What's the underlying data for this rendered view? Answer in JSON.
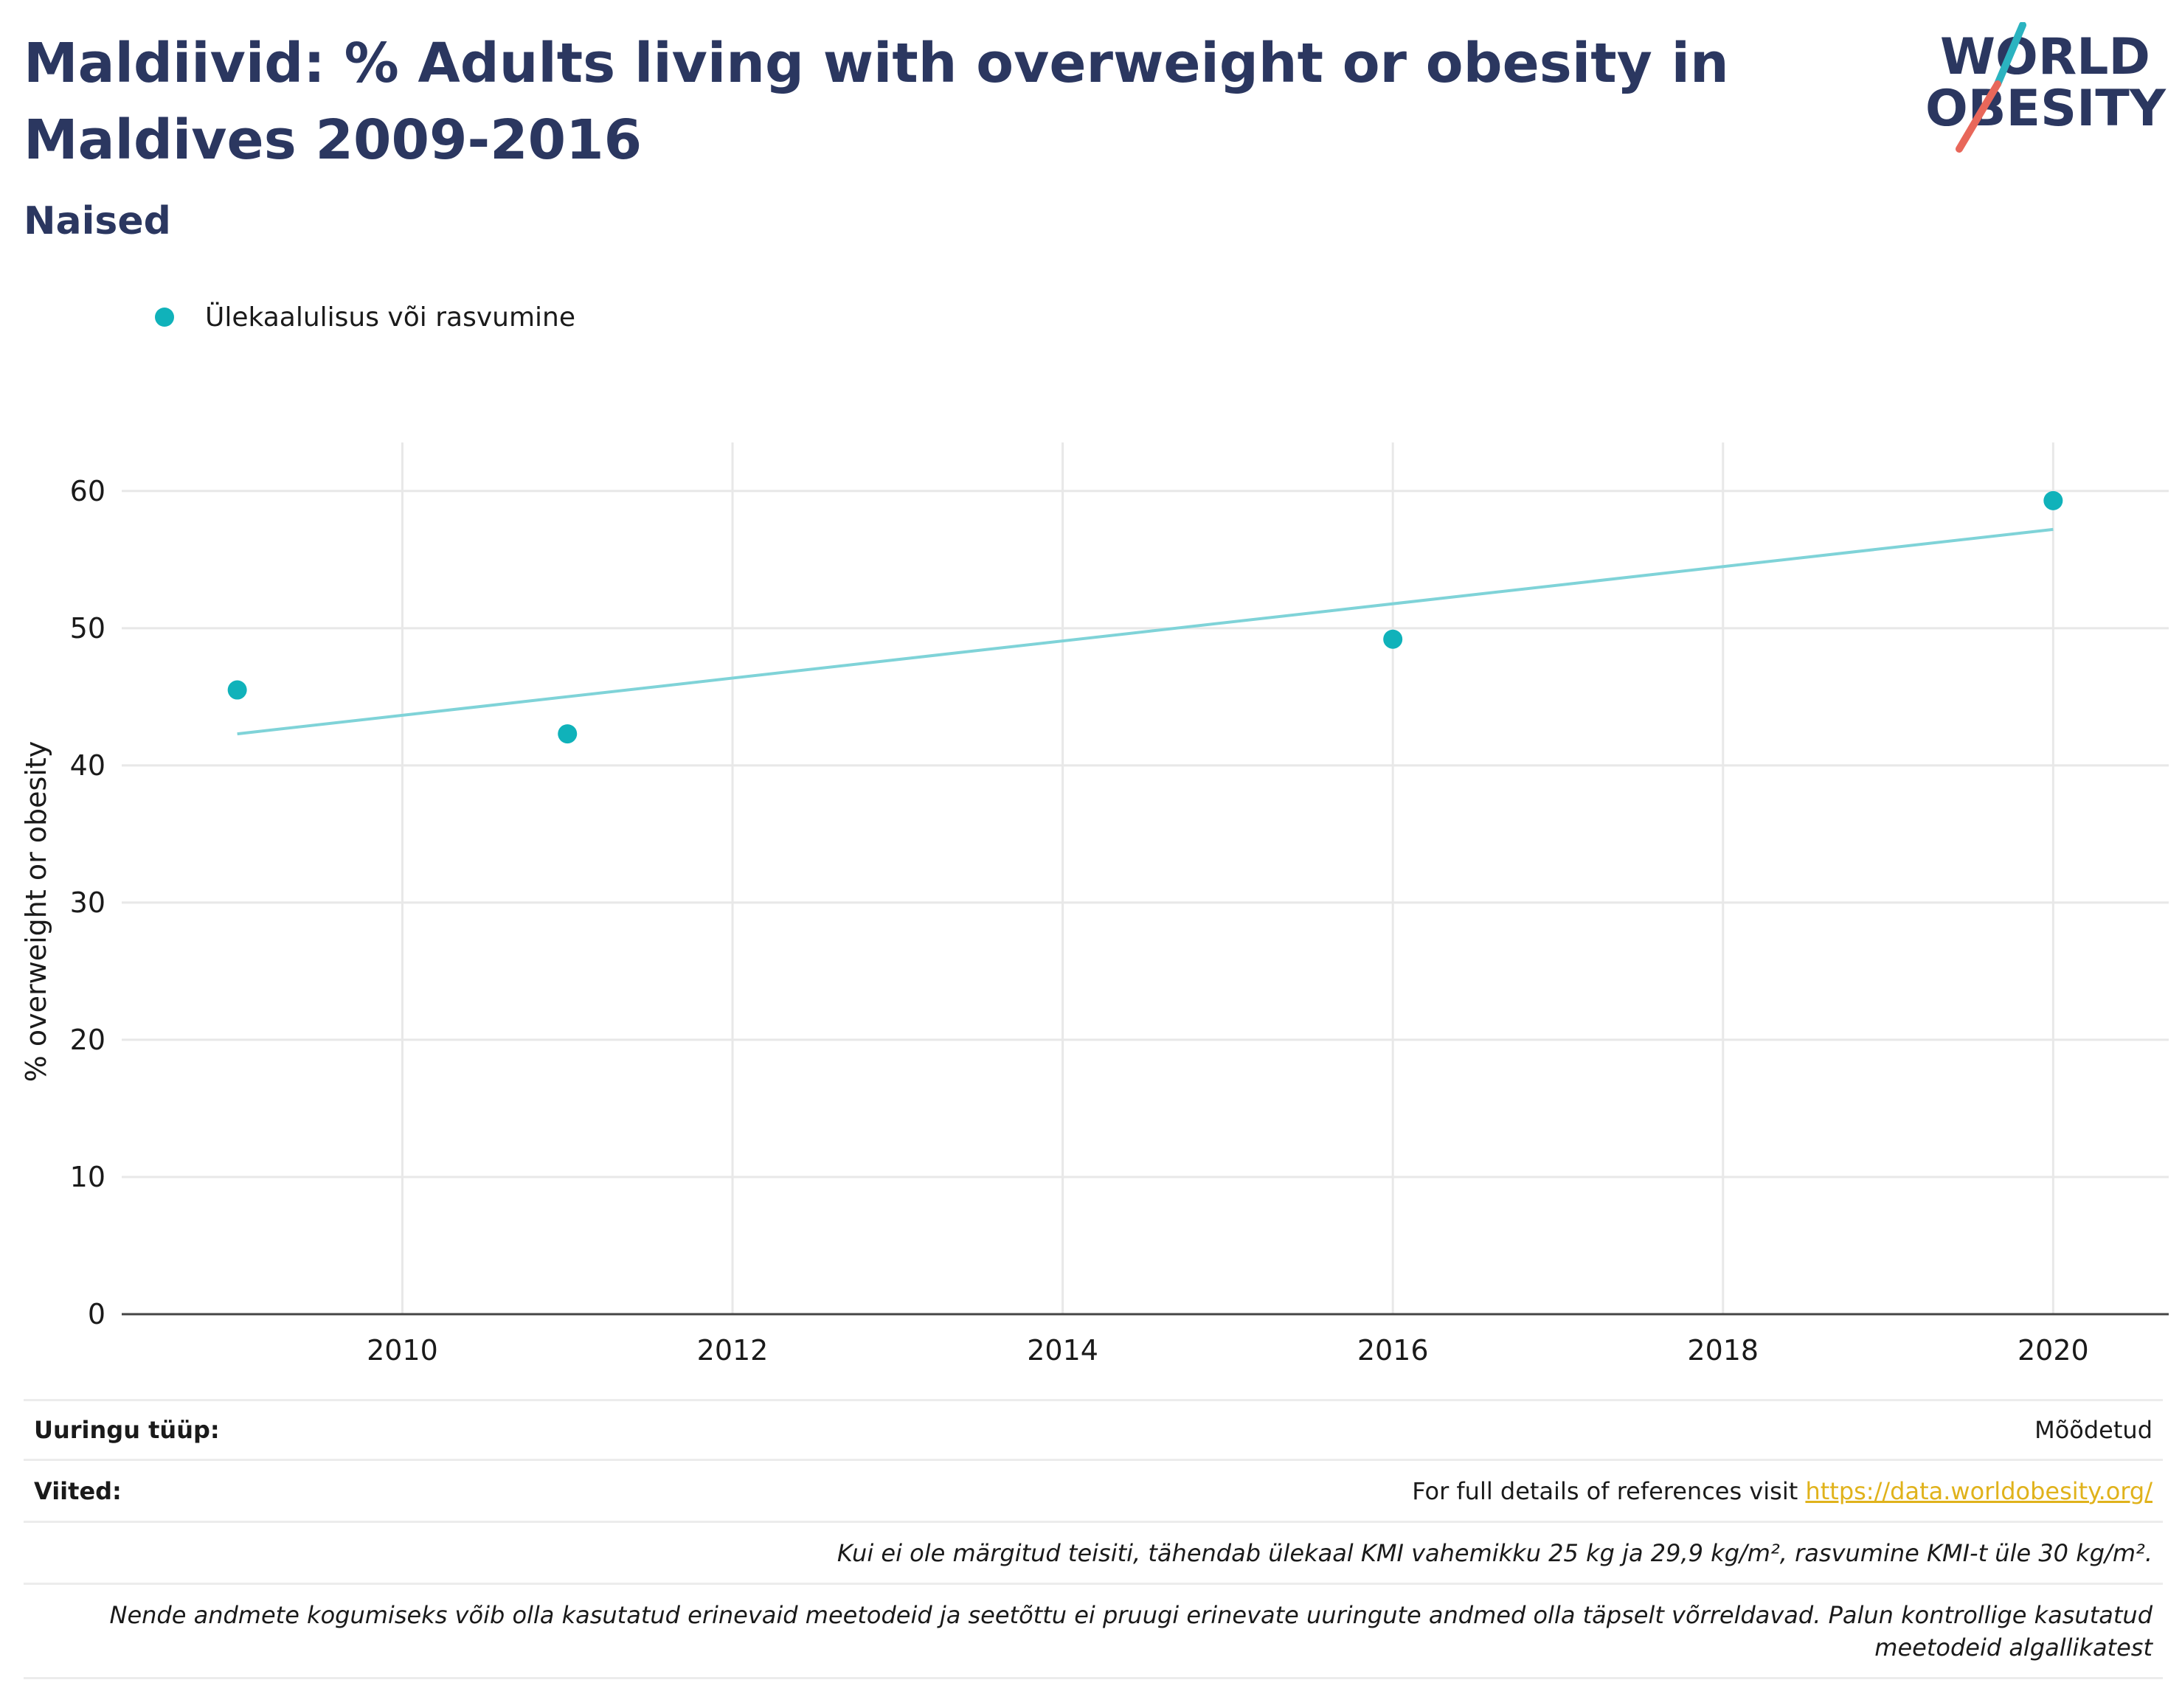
{
  "header": {
    "title": "Maldiivid: % Adults living with overweight or obesity in Maldives 2009-2016",
    "subtitle": "Naised"
  },
  "logo": {
    "line1": "WORLD",
    "line2": "OBESITY",
    "colors": {
      "text": "#2b3760",
      "slash_top": "#2bb3c0",
      "slash_bottom": "#e8675a"
    }
  },
  "legend": {
    "items": [
      {
        "label": "Ülekaalulisus või rasvumine",
        "color": "#10b2ba"
      }
    ]
  },
  "chart_data": {
    "type": "scatter",
    "xlabel": "",
    "ylabel": "% overweight or obesity",
    "xlim": [
      2008.3,
      2020.7
    ],
    "ylim": [
      0,
      63
    ],
    "xticks": [
      2010,
      2012,
      2014,
      2016,
      2018,
      2020
    ],
    "yticks": [
      0,
      10,
      20,
      30,
      40,
      50,
      60
    ],
    "grid": true,
    "legend_position": "top-left",
    "series": [
      {
        "name": "Ülekaalulisus või rasvumine",
        "color": "#10b2ba",
        "points": [
          {
            "x": 2009,
            "y": 45.5
          },
          {
            "x": 2011,
            "y": 42.3
          },
          {
            "x": 2016,
            "y": 49.2
          },
          {
            "x": 2020,
            "y": 59.3
          }
        ],
        "trendline": {
          "color": "#7fd3d8",
          "points": [
            {
              "x": 2009,
              "y": 42.3
            },
            {
              "x": 2020,
              "y": 57.2
            }
          ]
        }
      }
    ]
  },
  "info": {
    "survey_type_label": "Uuringu tüüp:",
    "survey_type_value": "Mõõdetud",
    "references_label": "Viited:",
    "references_text": "For full details of references visit",
    "references_link": "https://data.worldobesity.org/",
    "note1": "Kui ei ole märgitud teisiti, tähendab ülekaal KMI vahemikku 25 kg ja 29,9 kg/m², rasvumine KMI-t üle 30 kg/m².",
    "note2": "Nende andmete kogumiseks võib olla kasutatud erinevaid meetodeid ja seetõttu ei pruugi erinevate uuringute andmed olla täpselt võrreldavad. Palun kontrollige kasutatud meetodeid algallikatest"
  }
}
